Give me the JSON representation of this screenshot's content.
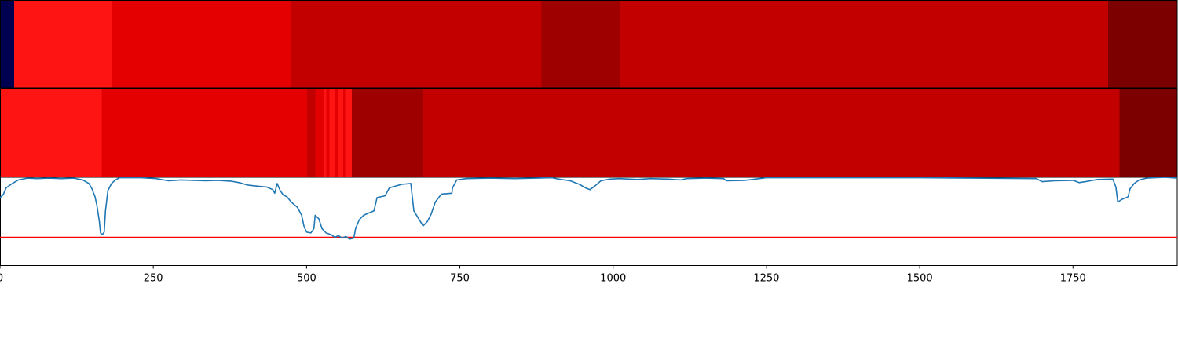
{
  "chart_data": [
    {
      "type": "heatmap",
      "segments": [
        {
          "x0": 0,
          "x1": 23,
          "color": "#000050"
        },
        {
          "x0": 23,
          "x1": 182,
          "color": "#ff1414"
        },
        {
          "x0": 182,
          "x1": 475,
          "color": "#e40000"
        },
        {
          "x0": 475,
          "x1": 883,
          "color": "#c20000"
        },
        {
          "x0": 883,
          "x1": 1011,
          "color": "#9e0000"
        },
        {
          "x0": 1011,
          "x1": 1807,
          "color": "#c20000"
        },
        {
          "x0": 1807,
          "x1": 1920,
          "color": "#7d0000"
        }
      ]
    },
    {
      "type": "heatmap",
      "segments": [
        {
          "x0": 0,
          "x1": 166,
          "color": "#ff1414"
        },
        {
          "x0": 166,
          "x1": 501,
          "color": "#e40000"
        },
        {
          "x0": 501,
          "x1": 514,
          "color": "#c20000"
        },
        {
          "x0": 514,
          "x1": 528,
          "color": "#e40000"
        },
        {
          "x0": 528,
          "x1": 532,
          "color": "#ff1414"
        },
        {
          "x0": 532,
          "x1": 537,
          "color": "#e40000"
        },
        {
          "x0": 537,
          "x1": 546,
          "color": "#ff1414"
        },
        {
          "x0": 546,
          "x1": 551,
          "color": "#e40000"
        },
        {
          "x0": 551,
          "x1": 560,
          "color": "#ff1414"
        },
        {
          "x0": 560,
          "x1": 563,
          "color": "#e40000"
        },
        {
          "x0": 563,
          "x1": 574,
          "color": "#ff1414"
        },
        {
          "x0": 574,
          "x1": 689,
          "color": "#9e0000"
        },
        {
          "x0": 689,
          "x1": 1826,
          "color": "#c20000"
        },
        {
          "x0": 1826,
          "x1": 1920,
          "color": "#7d0000"
        }
      ]
    },
    {
      "type": "line",
      "xlim": [
        0,
        1920
      ],
      "ylim": [
        0,
        1
      ],
      "threshold": 0.32,
      "threshold_color": "#ff0000",
      "series_color": "#1f77b4",
      "xticks": [
        0,
        250,
        500,
        750,
        1000,
        1250,
        1500,
        1750
      ],
      "points": [
        [
          0,
          0.77
        ],
        [
          5,
          0.8
        ],
        [
          10,
          0.88
        ],
        [
          20,
          0.93
        ],
        [
          30,
          0.97
        ],
        [
          45,
          0.99
        ],
        [
          60,
          0.985
        ],
        [
          80,
          0.99
        ],
        [
          100,
          0.985
        ],
        [
          120,
          0.99
        ],
        [
          135,
          0.97
        ],
        [
          145,
          0.93
        ],
        [
          150,
          0.87
        ],
        [
          155,
          0.78
        ],
        [
          158,
          0.68
        ],
        [
          162,
          0.5
        ],
        [
          164,
          0.37
        ],
        [
          167,
          0.35
        ],
        [
          170,
          0.38
        ],
        [
          172,
          0.62
        ],
        [
          176,
          0.85
        ],
        [
          182,
          0.93
        ],
        [
          188,
          0.97
        ],
        [
          195,
          0.995
        ],
        [
          230,
          0.995
        ],
        [
          255,
          0.985
        ],
        [
          275,
          0.96
        ],
        [
          295,
          0.97
        ],
        [
          315,
          0.965
        ],
        [
          335,
          0.96
        ],
        [
          355,
          0.965
        ],
        [
          378,
          0.955
        ],
        [
          390,
          0.94
        ],
        [
          405,
          0.91
        ],
        [
          420,
          0.9
        ],
        [
          435,
          0.89
        ],
        [
          445,
          0.86
        ],
        [
          448,
          0.82
        ],
        [
          452,
          0.93
        ],
        [
          457,
          0.85
        ],
        [
          462,
          0.8
        ],
        [
          468,
          0.78
        ],
        [
          475,
          0.72
        ],
        [
          485,
          0.66
        ],
        [
          492,
          0.57
        ],
        [
          496,
          0.44
        ],
        [
          500,
          0.38
        ],
        [
          507,
          0.37
        ],
        [
          512,
          0.42
        ],
        [
          514,
          0.57
        ],
        [
          520,
          0.53
        ],
        [
          525,
          0.42
        ],
        [
          532,
          0.37
        ],
        [
          540,
          0.35
        ],
        [
          546,
          0.32
        ],
        [
          552,
          0.34
        ],
        [
          558,
          0.31
        ],
        [
          564,
          0.33
        ],
        [
          570,
          0.3
        ],
        [
          577,
          0.31
        ],
        [
          580,
          0.42
        ],
        [
          586,
          0.52
        ],
        [
          593,
          0.57
        ],
        [
          603,
          0.6
        ],
        [
          610,
          0.62
        ],
        [
          615,
          0.77
        ],
        [
          628,
          0.79
        ],
        [
          635,
          0.88
        ],
        [
          655,
          0.92
        ],
        [
          670,
          0.93
        ],
        [
          675,
          0.62
        ],
        [
          683,
          0.53
        ],
        [
          690,
          0.45
        ],
        [
          697,
          0.5
        ],
        [
          703,
          0.58
        ],
        [
          710,
          0.72
        ],
        [
          720,
          0.81
        ],
        [
          737,
          0.82
        ],
        [
          738,
          0.88
        ],
        [
          745,
          0.97
        ],
        [
          760,
          0.985
        ],
        [
          800,
          0.99
        ],
        [
          840,
          0.985
        ],
        [
          875,
          0.99
        ],
        [
          900,
          0.995
        ],
        [
          915,
          0.975
        ],
        [
          930,
          0.96
        ],
        [
          945,
          0.92
        ],
        [
          955,
          0.88
        ],
        [
          962,
          0.86
        ],
        [
          970,
          0.9
        ],
        [
          980,
          0.96
        ],
        [
          995,
          0.98
        ],
        [
          1010,
          0.985
        ],
        [
          1040,
          0.975
        ],
        [
          1060,
          0.985
        ],
        [
          1090,
          0.98
        ],
        [
          1110,
          0.97
        ],
        [
          1120,
          0.985
        ],
        [
          1150,
          0.99
        ],
        [
          1180,
          0.985
        ],
        [
          1185,
          0.96
        ],
        [
          1215,
          0.965
        ],
        [
          1250,
          0.995
        ],
        [
          1500,
          0.995
        ],
        [
          1690,
          0.985
        ],
        [
          1700,
          0.95
        ],
        [
          1720,
          0.96
        ],
        [
          1750,
          0.965
        ],
        [
          1760,
          0.94
        ],
        [
          1770,
          0.95
        ],
        [
          1790,
          0.975
        ],
        [
          1815,
          0.98
        ],
        [
          1820,
          0.89
        ],
        [
          1823,
          0.72
        ],
        [
          1830,
          0.75
        ],
        [
          1840,
          0.78
        ],
        [
          1843,
          0.87
        ],
        [
          1850,
          0.93
        ],
        [
          1858,
          0.97
        ],
        [
          1870,
          0.99
        ],
        [
          1900,
          1.0
        ],
        [
          1920,
          0.99
        ]
      ]
    }
  ]
}
